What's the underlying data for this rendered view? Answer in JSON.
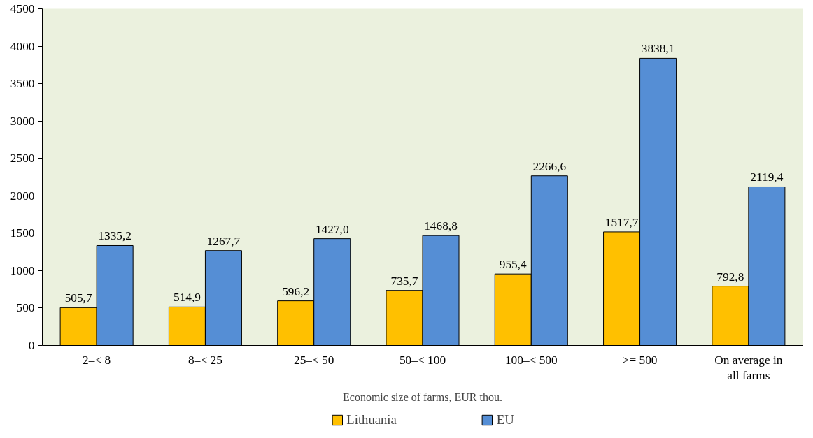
{
  "chart_data": {
    "type": "bar",
    "xlabel": "Economic size of farms, EUR thou.",
    "categories": [
      "2–< 8",
      "8–< 25",
      "25–< 50",
      "50–< 100",
      "100–< 500",
      ">= 500",
      "On average in all farms"
    ],
    "series": [
      {
        "name": "Lithuania",
        "color": "#ffc000",
        "values": [
          505.7,
          514.9,
          596.2,
          735.7,
          955.4,
          1517.7,
          792.8
        ],
        "value_labels": [
          "505,7",
          "514,9",
          "596,2",
          "735,7",
          "955,4",
          "1517,7",
          "792,8"
        ]
      },
      {
        "name": "EU",
        "color": "#558ed5",
        "values": [
          1335.2,
          1267.7,
          1427.0,
          1468.8,
          2266.6,
          3838.1,
          2119.4
        ],
        "value_labels": [
          "1335,2",
          "1267,7",
          "1427,0",
          "1468,8",
          "2266,6",
          "3838,1",
          "2119,4"
        ]
      }
    ],
    "ylim": [
      0,
      4500
    ],
    "yticks": [
      0,
      500,
      1000,
      1500,
      2000,
      2500,
      3000,
      3500,
      4000,
      4500
    ],
    "grid": false,
    "legend": "bottom"
  }
}
